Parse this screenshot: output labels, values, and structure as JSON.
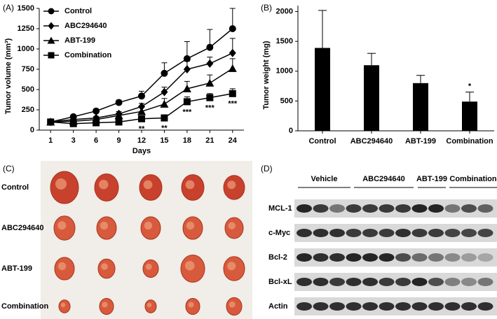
{
  "chart_data": [
    {
      "type": "line",
      "panel": "(A)",
      "y_label": "Tumor volume (mm³)",
      "x_label": "Days",
      "categories": [
        "1",
        "3",
        "6",
        "9",
        "12",
        "15",
        "18",
        "21",
        "24"
      ],
      "ylim": [
        0,
        1500
      ],
      "yticks": [
        0,
        250,
        500,
        750,
        1000,
        1250,
        1500
      ],
      "legend": "upper left",
      "series": [
        {
          "name": "Control",
          "color": "#000000",
          "marker": "circle",
          "values": [
            100,
            165,
            235,
            340,
            420,
            700,
            880,
            1020,
            1250
          ],
          "errors": [
            15,
            20,
            25,
            30,
            60,
            130,
            210,
            220,
            250
          ]
        },
        {
          "name": "ABC294640",
          "color": "#000000",
          "marker": "diamond",
          "values": [
            100,
            130,
            150,
            200,
            290,
            470,
            750,
            820,
            950
          ],
          "errors": [
            10,
            15,
            20,
            30,
            40,
            60,
            100,
            80,
            180
          ]
        },
        {
          "name": "ABT-199",
          "color": "#000000",
          "marker": "triangle",
          "values": [
            100,
            110,
            130,
            180,
            230,
            320,
            510,
            580,
            760
          ],
          "errors": [
            10,
            15,
            20,
            25,
            50,
            70,
            90,
            100,
            120
          ]
        },
        {
          "name": "Combination",
          "color": "#000000",
          "marker": "square",
          "values": [
            100,
            80,
            90,
            100,
            140,
            150,
            350,
            400,
            450
          ],
          "errors": [
            10,
            10,
            15,
            20,
            30,
            40,
            60,
            50,
            60
          ]
        }
      ],
      "annotations": [
        {
          "x": "12",
          "text": "**"
        },
        {
          "x": "15",
          "text": "**"
        },
        {
          "x": "18",
          "text": "***"
        },
        {
          "x": "21",
          "text": "***"
        },
        {
          "x": "24",
          "text": "***"
        }
      ]
    },
    {
      "type": "bar",
      "panel": "(B)",
      "y_label": "Tumor weight (mg)",
      "color": "#000000",
      "categories": [
        "Control",
        "ABC294640",
        "ABT-199",
        "Combination"
      ],
      "values": [
        1390,
        1100,
        800,
        490
      ],
      "errors": [
        630,
        200,
        130,
        160
      ],
      "ylim": [
        0,
        2100
      ],
      "yticks": [
        0,
        500,
        1000,
        1500,
        2000
      ],
      "annotations": [
        {
          "x": "Combination",
          "text": "*"
        }
      ]
    }
  ],
  "photo_panel": {
    "panel": "(C)",
    "rows": [
      "Control",
      "ABC294640",
      "ABT-199",
      "Combination"
    ]
  },
  "blot_panel": {
    "panel": "(D)",
    "groups": [
      "Vehicle",
      "ABC294640",
      "ABT-199",
      "Combination"
    ],
    "rows": [
      "MCL-1",
      "c-Myc",
      "Bcl-2",
      "Bcl-xL",
      "Actin"
    ]
  }
}
